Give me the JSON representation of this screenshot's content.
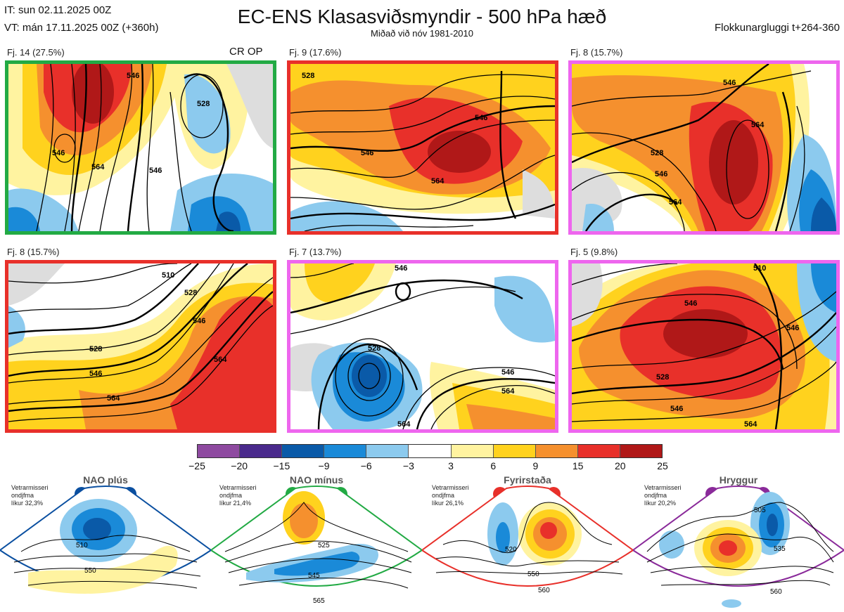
{
  "header": {
    "it": "IT: sun 02.11.2025 00Z",
    "vt": "VT: mán 17.11.2025 00Z  (+360h)",
    "title": "EC-ENS Klasasviðsmyndir - 500 hPa hæð",
    "subtitle": "Miðað við nóv 1981-2010",
    "window": "Flokkunargluggi t+264-360"
  },
  "panels": [
    {
      "label": "Fj. 14 (27.5%)",
      "tag": "CR OP",
      "frame_color": "#22aa44",
      "contours": [
        "546",
        "564",
        "546",
        "546",
        "528"
      ]
    },
    {
      "label": "Fj. 9 (17.6%)",
      "frame_color": "#e8302a",
      "contours": [
        "528",
        "546",
        "546",
        "564"
      ]
    },
    {
      "label": "Fj. 8 (15.7%)",
      "frame_color": "#ee66ee",
      "contours": [
        "546",
        "564",
        "528",
        "546",
        "564"
      ]
    },
    {
      "label": "Fj. 8 (15.7%)",
      "frame_color": "#e8302a",
      "contours": [
        "510",
        "528",
        "546",
        "528",
        "546",
        "564",
        "564"
      ]
    },
    {
      "label": "Fj. 7 (13.7%)",
      "frame_color": "#ee66ee",
      "contours": [
        "546",
        "528",
        "546",
        "564",
        "564"
      ]
    },
    {
      "label": "Fj. 5 (9.8%)",
      "frame_color": "#ee66ee",
      "contours": [
        "510",
        "546",
        "546",
        "528",
        "546",
        "564"
      ]
    }
  ],
  "colorbar": {
    "ticks": [
      "−25",
      "−20",
      "−15",
      "−9",
      "−6",
      "−3",
      "3",
      "6",
      "9",
      "15",
      "20",
      "25"
    ],
    "colors": [
      "#8e4aa0",
      "#4a2a8c",
      "#0a5aa8",
      "#1a8ad8",
      "#8ccaee",
      "#ffffff",
      "#fff3a0",
      "#ffd21e",
      "#f5902e",
      "#e8302a",
      "#b01818"
    ]
  },
  "regimes": [
    {
      "name": "NAO plús",
      "info_1": "Vetrarmisseri",
      "info_2": "ondjfma",
      "info_3": "líkur 32,3%",
      "color": "#0a4fa0",
      "labels": [
        "510",
        "550"
      ]
    },
    {
      "name": "NAO mínus",
      "info_1": "Vetrarmisseri",
      "info_2": "ondjfma",
      "info_3": "líkur 21,4%",
      "color": "#22aa44",
      "labels": [
        "525",
        "545",
        "565"
      ]
    },
    {
      "name": "Fyrirstaða",
      "info_1": "Vetrarmisseri",
      "info_2": "ondjfma",
      "info_3": "líkur 26,1%",
      "color": "#e8302a",
      "labels": [
        "520",
        "550",
        "560"
      ]
    },
    {
      "name": "Hryggur",
      "info_1": "Vetrarmisseri",
      "info_2": "ondjfma",
      "info_3": "líkur 20,2%",
      "color": "#8a2a9a",
      "labels": [
        "505",
        "535",
        "560"
      ]
    }
  ]
}
